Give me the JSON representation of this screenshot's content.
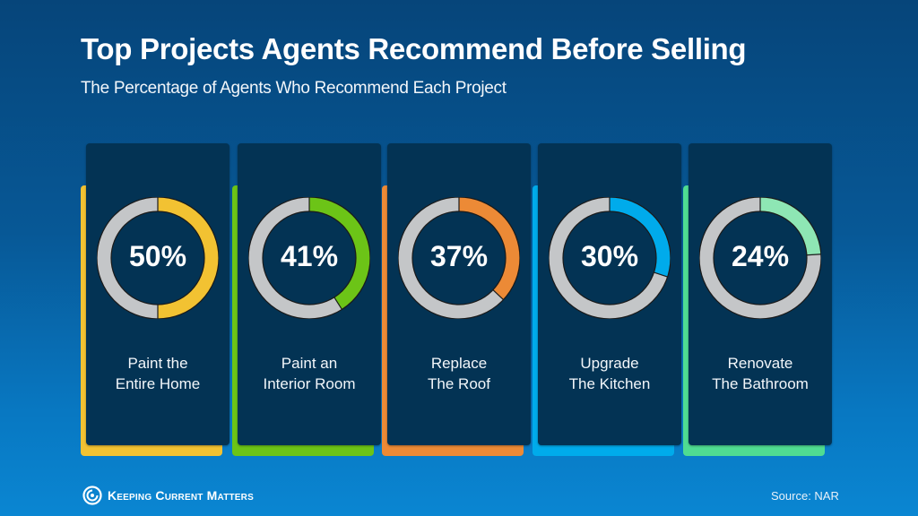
{
  "header": {
    "title": "Top Projects Agents Recommend Before Selling",
    "subtitle": "The Percentage of Agents Who Recommend Each Project"
  },
  "cards": [
    {
      "value": 50,
      "pct_label": "50%",
      "line1": "Paint the",
      "line2": "Entire Home",
      "color": "#f2c232"
    },
    {
      "value": 41,
      "pct_label": "41%",
      "line1": "Paint an",
      "line2": "Interior Room",
      "color": "#6cc417"
    },
    {
      "value": 37,
      "pct_label": "37%",
      "line1": "Replace",
      "line2": "The Roof",
      "color": "#ec8a36"
    },
    {
      "value": 30,
      "pct_label": "30%",
      "line1": "Upgrade",
      "line2": "The Kitchen",
      "color": "#00abeb"
    },
    {
      "value": 24,
      "pct_label": "24%",
      "line1": "Renovate",
      "line2": "The Bathroom",
      "color": "#8ee6b4"
    }
  ],
  "accent_colors": [
    "#f2c232",
    "#6cc417",
    "#ec8a36",
    "#00abeb",
    "#4fdc92"
  ],
  "ring_track_color": "#c4c6c8",
  "footer": {
    "brand": "Keeping Current Matters",
    "source": "Source: NAR"
  },
  "chart_data": {
    "type": "pie",
    "subtype": "donut",
    "title": "Top Projects Agents Recommend Before Selling",
    "subtitle": "The Percentage of Agents Who Recommend Each Project",
    "categories": [
      "Paint the Entire Home",
      "Paint an Interior Room",
      "Replace The Roof",
      "Upgrade The Kitchen",
      "Renovate The Bathroom"
    ],
    "values": [
      50,
      41,
      37,
      30,
      24
    ],
    "unit": "%",
    "colors": [
      "#f2c232",
      "#6cc417",
      "#ec8a36",
      "#00abeb",
      "#8ee6b4"
    ],
    "source": "NAR"
  }
}
